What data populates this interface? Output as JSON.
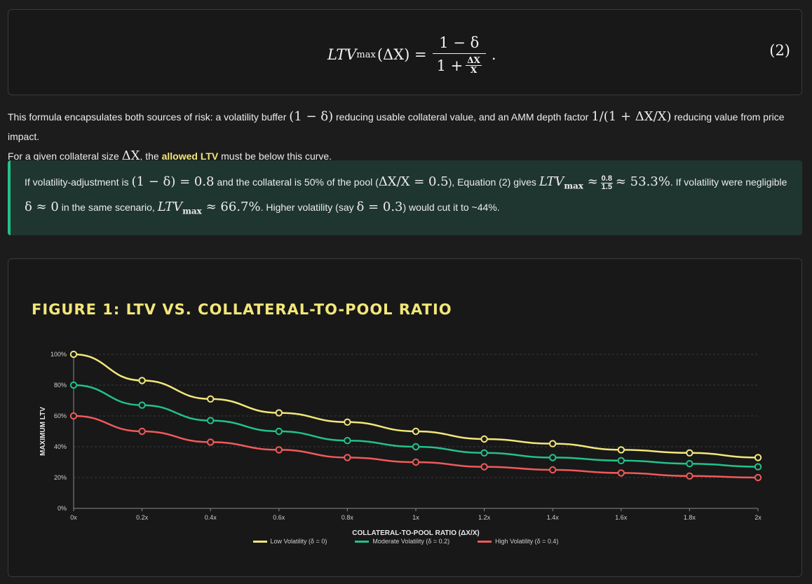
{
  "equation": {
    "lhs_base": "LTV",
    "lhs_sub": "max",
    "lhs_arg": "(ΔX) =",
    "numerator": "1 − δ",
    "denominator_lead": "1 +",
    "inner_num": "ΔX",
    "inner_den": "X",
    "trailing": ".",
    "number": "(2)"
  },
  "paragraph": {
    "p1": "This formula encapsulates both sources of risk: a volatility buffer",
    "m1": "(1 − δ)",
    "p2": "reducing usable collateral value, and an AMM depth factor",
    "m2": "1/(1 + ΔX/X)",
    "p3": "reducing value from price impact.",
    "p4": "For a given collateral size",
    "m3": "ΔX",
    "p5": ", the",
    "highlight": "allowed LTV",
    "p6": "must be below this curve."
  },
  "callout": {
    "t1": "If volatility-adjustment is",
    "m1": "(1 − δ) = 0.8",
    "t2": "and the collateral is 50% of the pool (",
    "m2": "ΔX/X = 0.5",
    "t3": "), Equation (2) gives",
    "m3_base": "LTV",
    "m3_sub": "max",
    "m3_approx": "≈",
    "frac_num": "0.8",
    "frac_den": "1.5",
    "m3_result": "≈ 53.3%",
    "t4": ". If volatility were negligible",
    "m4": "δ ≈ 0",
    "t5": "in the same scenario,",
    "m5_base": "LTV",
    "m5_sub": "max",
    "m5_result": "≈ 66.7%",
    "t6": ". Higher volatility (say",
    "m6": "δ = 0.3",
    "t7": ") would cut it to ~44%."
  },
  "chart_title": "FIGURE 1: LTV VS. COLLATERAL-TO-POOL RATIO",
  "chart_data": {
    "type": "line",
    "title": "FIGURE 1: LTV VS. COLLATERAL-TO-POOL RATIO",
    "xlabel": "COLLATERAL-TO-POOL RATIO (ΔX/X)",
    "ylabel": "MAXIMUM LTV",
    "categories": [
      "0x",
      "0.2x",
      "0.4x",
      "0.6x",
      "0.8x",
      "1x",
      "1.2x",
      "1.4x",
      "1.6x",
      "1.8x",
      "2x"
    ],
    "yticks": [
      "0%",
      "20%",
      "40%",
      "60%",
      "80%",
      "100%"
    ],
    "ylim": [
      0,
      100
    ],
    "grid": true,
    "legend_position": "bottom",
    "series": [
      {
        "name": "Low Volatility (δ = 0)",
        "color": "#f2e77a",
        "values": [
          100,
          83,
          71,
          62,
          56,
          50,
          45,
          42,
          38,
          36,
          33
        ]
      },
      {
        "name": "Moderate Volatility (δ = 0.2)",
        "color": "#22c28a",
        "values": [
          80,
          67,
          57,
          50,
          44,
          40,
          36,
          33,
          31,
          29,
          27
        ]
      },
      {
        "name": "High Volatility (δ = 0.4)",
        "color": "#f05a5a",
        "values": [
          60,
          50,
          43,
          38,
          33,
          30,
          27,
          25,
          23,
          21,
          20
        ]
      }
    ]
  }
}
